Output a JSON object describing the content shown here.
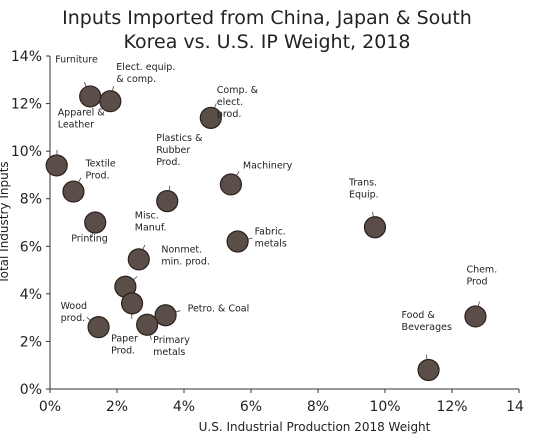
{
  "chart_data": {
    "type": "scatter",
    "title": "Inputs Imported from China, Japan & South Korea vs. U.S. IP Weight, 2018",
    "title_lines": [
      "Inputs Imported from China, Japan & South",
      "Korea vs. U.S. IP Weight, 2018"
    ],
    "xlabel": "U.S. Industrial Production 2018 Weight",
    "ylabel": "Total Industry Inputs",
    "xlim": [
      0,
      14
    ],
    "ylim": [
      0,
      14
    ],
    "x_ticks": [
      "0%",
      "2%",
      "4%",
      "6%",
      "8%",
      "10%",
      "12%",
      "14"
    ],
    "y_ticks": [
      "0%",
      "2%",
      "4%",
      "6%",
      "8%",
      "10%",
      "12%",
      "14%"
    ],
    "marker_color": "#5b4d47",
    "grid": false,
    "points": [
      {
        "label": [
          "Furniture"
        ],
        "x": 1.2,
        "y": 12.3
      },
      {
        "label": [
          "Elect. equip.",
          "& comp."
        ],
        "x": 1.8,
        "y": 12.1
      },
      {
        "label": [
          "Comp. &",
          "elect.",
          "prod."
        ],
        "x": 4.8,
        "y": 11.4
      },
      {
        "label": [
          "Apparel &",
          "Leather"
        ],
        "x": 0.2,
        "y": 9.4
      },
      {
        "label": [
          "Textile",
          "Prod."
        ],
        "x": 0.7,
        "y": 8.3
      },
      {
        "label": [
          "Plastics &",
          "Rubber",
          "Prod."
        ],
        "x": 3.5,
        "y": 7.9
      },
      {
        "label": [
          "Machinery"
        ],
        "x": 5.4,
        "y": 8.6
      },
      {
        "label": [
          "Printing"
        ],
        "x": 1.35,
        "y": 7.0
      },
      {
        "label": [
          "Trans.",
          "Equip."
        ],
        "x": 9.7,
        "y": 6.8
      },
      {
        "label": [
          "Misc.",
          "Manuf."
        ],
        "x": 2.65,
        "y": 5.45
      },
      {
        "label": [
          "Fabric.",
          "metals"
        ],
        "x": 5.6,
        "y": 6.2
      },
      {
        "label": [
          "Nonmet.",
          "min. prod."
        ],
        "x": 2.25,
        "y": 4.3
      },
      {
        "label": [
          "Paper",
          "Prod."
        ],
        "x": 2.45,
        "y": 3.6
      },
      {
        "label": [
          "Petro. & Coal"
        ],
        "x": 3.45,
        "y": 3.1
      },
      {
        "label": [
          "Wood",
          "prod."
        ],
        "x": 1.45,
        "y": 2.6
      },
      {
        "label": [
          "Primary",
          "metals"
        ],
        "x": 2.9,
        "y": 2.7
      },
      {
        "label": [
          "Chem.",
          "Prod"
        ],
        "x": 12.7,
        "y": 3.05
      },
      {
        "label": [
          "Food &",
          "Beverages"
        ],
        "x": 11.3,
        "y": 0.8
      }
    ]
  }
}
